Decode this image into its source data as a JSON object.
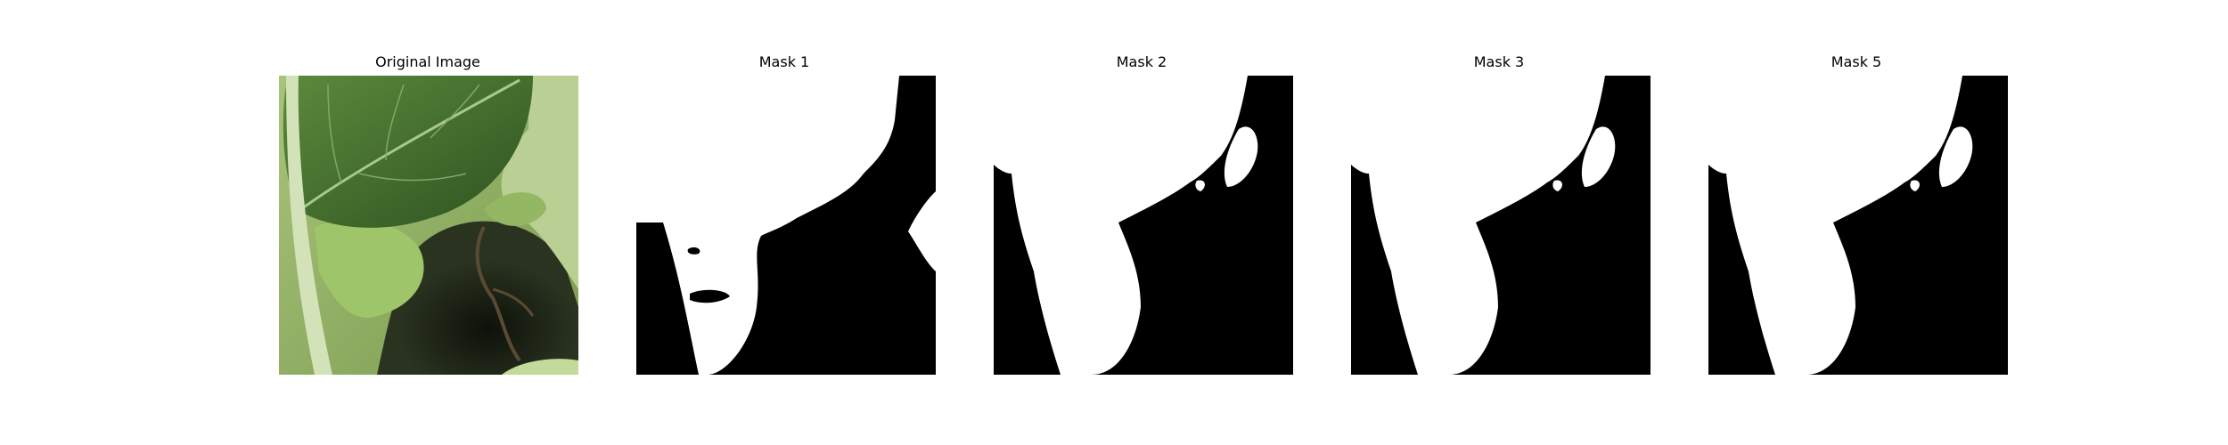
{
  "figure": {
    "panels": [
      {
        "title": "Original Image"
      },
      {
        "title": "Mask 1"
      },
      {
        "title": "Mask 2"
      },
      {
        "title": "Mask 3"
      },
      {
        "title": "Mask 5"
      }
    ]
  },
  "colors": {
    "background": "#ffffff",
    "mask_foreground": "#ffffff",
    "mask_background": "#000000",
    "leaf_dark": "#3f6a2b",
    "leaf_light": "#8fbf5a",
    "stem": "#c9dcae",
    "soil": "#1c1f12"
  }
}
